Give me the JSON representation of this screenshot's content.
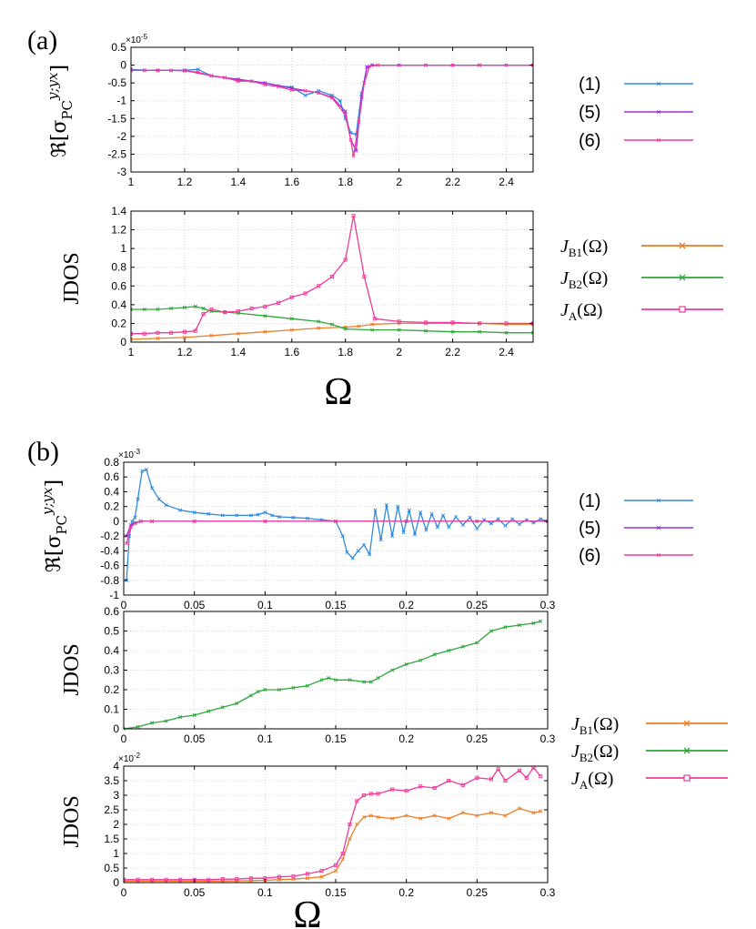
{
  "panels": {
    "a": "(a)",
    "b": "(b)"
  },
  "colors": {
    "s1": "#2f8be0",
    "s5": "#9b30d9",
    "s6": "#f0399a",
    "JB1": "#f07d24",
    "JB2": "#2ea63a",
    "JA": "#f0399a"
  },
  "legend_sigma": [
    {
      "label": "(1)",
      "color": "#2f8be0"
    },
    {
      "label": "(5)",
      "color": "#9b30d9"
    },
    {
      "label": "(6)",
      "color": "#f0399a"
    }
  ],
  "legend_jdos": [
    {
      "main": "J",
      "sub": "B1",
      "tail": "(Ω)",
      "color": "#f07d24",
      "marker": "x"
    },
    {
      "main": "J",
      "sub": "B2",
      "tail": "(Ω)",
      "color": "#2ea63a",
      "marker": "x"
    },
    {
      "main": "J",
      "sub": "A",
      "tail": "(Ω)",
      "color": "#f0399a",
      "marker": "square"
    }
  ],
  "ylabels": {
    "sigma_prefix": "ℜ[σ",
    "sigma_sub": "PC",
    "sigma_sup": "y;yx",
    "sigma_suffix": "]",
    "jdos": "JDOS"
  },
  "xlabel": "Ω",
  "chart_data": [
    {
      "id": "a_top",
      "type": "line",
      "title": "",
      "multiplier": "×10",
      "multiplier_exp": "-5",
      "xlim": [
        1,
        2.5
      ],
      "ylim": [
        -3,
        0.5
      ],
      "xticks": [
        1,
        1.2,
        1.4,
        1.6,
        1.8,
        2,
        2.2,
        2.4
      ],
      "yticks": [
        0.5,
        0,
        -0.5,
        -1,
        -1.5,
        -2,
        -2.5,
        -3
      ],
      "xticklabels": [
        "1",
        "1.2",
        "1.4",
        "1.6",
        "1.8",
        "2",
        "2.2",
        "2.4"
      ],
      "yticklabels": [
        "0.5",
        "0",
        "-0.5",
        "-1",
        "-1.5",
        "-2",
        "-2.5",
        "-3"
      ],
      "series": [
        {
          "name": "(1)",
          "color": "#2f8be0",
          "marker": "x",
          "x": [
            1.0,
            1.05,
            1.1,
            1.15,
            1.2,
            1.25,
            1.3,
            1.35,
            1.4,
            1.45,
            1.5,
            1.55,
            1.6,
            1.65,
            1.7,
            1.75,
            1.78,
            1.8,
            1.82,
            1.84,
            1.86,
            1.88,
            1.9,
            2.0,
            2.1,
            2.2,
            2.3,
            2.4,
            2.5
          ],
          "y": [
            -0.12,
            -0.14,
            -0.14,
            -0.15,
            -0.14,
            -0.12,
            -0.3,
            -0.35,
            -0.42,
            -0.45,
            -0.5,
            -0.58,
            -0.62,
            -0.85,
            -0.72,
            -0.85,
            -1.0,
            -1.5,
            -1.9,
            -1.95,
            -0.8,
            -0.05,
            0.0,
            0.0,
            0.0,
            0.0,
            0.0,
            0.0,
            0.0
          ]
        },
        {
          "name": "(5)",
          "color": "#9b30d9",
          "marker": "x",
          "x": [
            1.0,
            1.1,
            1.2,
            1.3,
            1.4,
            1.5,
            1.6,
            1.7,
            1.75,
            1.8,
            1.82,
            1.84,
            1.86,
            1.88,
            1.9,
            2.0,
            2.2,
            2.5
          ],
          "y": [
            -0.15,
            -0.15,
            -0.15,
            -0.3,
            -0.4,
            -0.5,
            -0.65,
            -0.78,
            -0.9,
            -1.3,
            -2.1,
            -2.4,
            -0.9,
            -0.05,
            0.0,
            0.0,
            0.0,
            0.0
          ]
        },
        {
          "name": "(6)",
          "color": "#f0399a",
          "marker": "x",
          "x": [
            1.0,
            1.05,
            1.1,
            1.15,
            1.2,
            1.25,
            1.3,
            1.35,
            1.4,
            1.45,
            1.5,
            1.55,
            1.6,
            1.65,
            1.7,
            1.75,
            1.8,
            1.82,
            1.83,
            1.85,
            1.87,
            1.89,
            1.92,
            2.0,
            2.1,
            2.2,
            2.3,
            2.4,
            2.5
          ],
          "y": [
            -0.15,
            -0.15,
            -0.15,
            -0.15,
            -0.16,
            -0.2,
            -0.3,
            -0.35,
            -0.45,
            -0.45,
            -0.55,
            -0.6,
            -0.7,
            -0.72,
            -0.78,
            -0.92,
            -1.4,
            -2.1,
            -2.55,
            -1.6,
            -0.5,
            -0.03,
            0.0,
            0.0,
            0.0,
            0.0,
            0.0,
            0.0,
            0.0
          ]
        }
      ]
    },
    {
      "id": "a_bottom",
      "type": "line",
      "title": "",
      "xlim": [
        1,
        2.5
      ],
      "ylim": [
        0,
        1.4
      ],
      "xticks": [
        1,
        1.2,
        1.4,
        1.6,
        1.8,
        2,
        2.2,
        2.4
      ],
      "yticks": [
        0,
        0.2,
        0.4,
        0.6,
        0.8,
        1,
        1.2,
        1.4
      ],
      "xticklabels": [
        "1",
        "1.2",
        "1.4",
        "1.6",
        "1.8",
        "2",
        "2.2",
        "2.4"
      ],
      "yticklabels": [
        "0",
        "0.2",
        "0.4",
        "0.6",
        "0.8",
        "1",
        "1.2",
        "1.4"
      ],
      "series": [
        {
          "name": "JB1",
          "color": "#f07d24",
          "marker": "x",
          "x": [
            1.0,
            1.1,
            1.2,
            1.3,
            1.4,
            1.5,
            1.6,
            1.7,
            1.8,
            1.85,
            1.9,
            2.0,
            2.1,
            2.2,
            2.3,
            2.4,
            2.5
          ],
          "y": [
            0.03,
            0.04,
            0.05,
            0.07,
            0.09,
            0.11,
            0.13,
            0.15,
            0.16,
            0.17,
            0.19,
            0.2,
            0.2,
            0.2,
            0.2,
            0.19,
            0.19
          ]
        },
        {
          "name": "JB2",
          "color": "#2ea63a",
          "marker": "x",
          "x": [
            1.0,
            1.05,
            1.1,
            1.15,
            1.2,
            1.24,
            1.27,
            1.3,
            1.35,
            1.4,
            1.5,
            1.6,
            1.7,
            1.75,
            1.8,
            1.9,
            2.0,
            2.1,
            2.2,
            2.3,
            2.4,
            2.5
          ],
          "y": [
            0.35,
            0.35,
            0.35,
            0.36,
            0.37,
            0.38,
            0.36,
            0.33,
            0.32,
            0.31,
            0.28,
            0.25,
            0.22,
            0.19,
            0.14,
            0.13,
            0.13,
            0.12,
            0.11,
            0.11,
            0.1,
            0.1
          ]
        },
        {
          "name": "JA",
          "color": "#f0399a",
          "marker": "square",
          "x": [
            1.0,
            1.05,
            1.1,
            1.15,
            1.2,
            1.24,
            1.27,
            1.3,
            1.35,
            1.4,
            1.45,
            1.5,
            1.55,
            1.6,
            1.65,
            1.7,
            1.75,
            1.8,
            1.83,
            1.87,
            1.91,
            2.0,
            2.1,
            2.2,
            2.3,
            2.4,
            2.5
          ],
          "y": [
            0.09,
            0.09,
            0.1,
            0.1,
            0.11,
            0.12,
            0.3,
            0.35,
            0.32,
            0.33,
            0.36,
            0.38,
            0.42,
            0.48,
            0.52,
            0.6,
            0.7,
            0.88,
            1.35,
            0.7,
            0.25,
            0.22,
            0.21,
            0.21,
            0.2,
            0.2,
            0.2
          ]
        }
      ]
    },
    {
      "id": "b_top",
      "type": "line",
      "title": "",
      "multiplier": "×10",
      "multiplier_exp": "-3",
      "xlim": [
        0,
        0.3
      ],
      "ylim": [
        -1,
        0.8
      ],
      "xticks": [
        0,
        0.05,
        0.1,
        0.15,
        0.2,
        0.25,
        0.3
      ],
      "yticks": [
        0.8,
        0.6,
        0.4,
        0.2,
        0,
        -0.2,
        -0.4,
        -0.6,
        -0.8,
        -1
      ],
      "xticklabels": [
        "0",
        "0.05",
        "0.1",
        "0.15",
        "0.2",
        "0.25",
        "0.3"
      ],
      "yticklabels": [
        "0.8",
        "0.6",
        "0.4",
        "0.2",
        "0",
        "-0.2",
        "-0.4",
        "-0.6",
        "-0.8",
        "-1"
      ],
      "series": [
        {
          "name": "(1)",
          "color": "#2f8be0",
          "marker": "x",
          "x": [
            0.002,
            0.004,
            0.006,
            0.008,
            0.01,
            0.013,
            0.016,
            0.02,
            0.025,
            0.03,
            0.04,
            0.05,
            0.06,
            0.07,
            0.08,
            0.09,
            0.095,
            0.1,
            0.105,
            0.11,
            0.12,
            0.13,
            0.14,
            0.15,
            0.155,
            0.158,
            0.162,
            0.166,
            0.17,
            0.174,
            0.178,
            0.182,
            0.186,
            0.19,
            0.194,
            0.198,
            0.202,
            0.206,
            0.21,
            0.214,
            0.218,
            0.222,
            0.226,
            0.23,
            0.235,
            0.24,
            0.245,
            0.25,
            0.255,
            0.26,
            0.265,
            0.27,
            0.275,
            0.28,
            0.285,
            0.29,
            0.295,
            0.3
          ],
          "y": [
            -0.8,
            -0.2,
            0.0,
            0.05,
            0.3,
            0.68,
            0.7,
            0.45,
            0.3,
            0.22,
            0.15,
            0.12,
            0.1,
            0.08,
            0.08,
            0.08,
            0.09,
            0.12,
            0.08,
            0.06,
            0.05,
            0.04,
            0.02,
            0.0,
            -0.2,
            -0.42,
            -0.5,
            -0.4,
            -0.32,
            -0.45,
            0.15,
            -0.25,
            0.22,
            -0.2,
            0.2,
            -0.15,
            0.15,
            -0.18,
            0.12,
            -0.12,
            0.1,
            -0.08,
            0.08,
            -0.08,
            0.06,
            -0.05,
            0.05,
            -0.1,
            0.02,
            -0.03,
            0.03,
            -0.06,
            0.03,
            -0.04,
            0.02,
            -0.02,
            0.03,
            0.0
          ]
        },
        {
          "name": "(5)",
          "color": "#9b30d9",
          "marker": "x",
          "x": [
            0.002,
            0.005,
            0.008,
            0.012,
            0.02,
            0.05,
            0.1,
            0.15,
            0.2,
            0.25,
            0.3
          ],
          "y": [
            -0.2,
            -0.05,
            -0.02,
            0.0,
            0.0,
            0.0,
            0.0,
            0.0,
            0.0,
            0.0,
            0.0
          ]
        },
        {
          "name": "(6)",
          "color": "#f0399a",
          "marker": "x",
          "x": [
            0.002,
            0.005,
            0.008,
            0.012,
            0.02,
            0.05,
            0.1,
            0.15,
            0.2,
            0.25,
            0.3
          ],
          "y": [
            -0.3,
            -0.08,
            -0.03,
            0.0,
            0.0,
            0.0,
            0.0,
            0.0,
            0.0,
            0.0,
            0.0
          ]
        }
      ]
    },
    {
      "id": "b_mid",
      "type": "line",
      "title": "",
      "xlim": [
        0,
        0.3
      ],
      "ylim": [
        0,
        0.6
      ],
      "xticks": [
        0,
        0.05,
        0.1,
        0.15,
        0.2,
        0.25,
        0.3
      ],
      "yticks": [
        0,
        0.1,
        0.2,
        0.3,
        0.4,
        0.5,
        0.6
      ],
      "xticklabels": [
        "0",
        "0.05",
        "0.1",
        "0.15",
        "0.2",
        "0.25",
        "0.3"
      ],
      "yticklabels": [
        "0",
        "0.1",
        "0.2",
        "0.3",
        "0.4",
        "0.5",
        "0.6"
      ],
      "series": [
        {
          "name": "JB2",
          "color": "#2ea63a",
          "marker": "x",
          "x": [
            0.0,
            0.01,
            0.02,
            0.03,
            0.04,
            0.05,
            0.06,
            0.07,
            0.08,
            0.09,
            0.095,
            0.1,
            0.11,
            0.12,
            0.13,
            0.14,
            0.145,
            0.15,
            0.16,
            0.17,
            0.175,
            0.18,
            0.19,
            0.2,
            0.21,
            0.22,
            0.23,
            0.24,
            0.25,
            0.26,
            0.27,
            0.28,
            0.29,
            0.295
          ],
          "y": [
            0.0,
            0.01,
            0.03,
            0.04,
            0.06,
            0.07,
            0.09,
            0.11,
            0.13,
            0.17,
            0.19,
            0.2,
            0.2,
            0.21,
            0.22,
            0.25,
            0.26,
            0.25,
            0.25,
            0.24,
            0.24,
            0.26,
            0.3,
            0.33,
            0.35,
            0.38,
            0.4,
            0.42,
            0.44,
            0.5,
            0.52,
            0.53,
            0.54,
            0.55
          ]
        }
      ]
    },
    {
      "id": "b_bottom",
      "type": "line",
      "title": "",
      "multiplier": "×10",
      "multiplier_exp": "-2",
      "xlim": [
        0,
        0.3
      ],
      "ylim": [
        0,
        4
      ],
      "xticks": [
        0,
        0.05,
        0.1,
        0.15,
        0.2,
        0.25,
        0.3
      ],
      "yticks": [
        0,
        0.5,
        1,
        1.5,
        2,
        2.5,
        3,
        3.5,
        4
      ],
      "xticklabels": [
        "0",
        "0.05",
        "0.1",
        "0.15",
        "0.2",
        "0.25",
        "0.3"
      ],
      "yticklabels": [
        "0",
        "0.5",
        "1",
        "1.5",
        "2",
        "2.5",
        "3",
        "3.5",
        "4"
      ],
      "series": [
        {
          "name": "JB1",
          "color": "#f07d24",
          "marker": "x",
          "x": [
            0.0,
            0.01,
            0.02,
            0.03,
            0.04,
            0.05,
            0.06,
            0.07,
            0.08,
            0.09,
            0.1,
            0.11,
            0.12,
            0.13,
            0.14,
            0.15,
            0.155,
            0.16,
            0.165,
            0.17,
            0.175,
            0.18,
            0.19,
            0.2,
            0.21,
            0.22,
            0.23,
            0.24,
            0.25,
            0.26,
            0.27,
            0.28,
            0.29,
            0.295
          ],
          "y": [
            0.05,
            0.05,
            0.05,
            0.05,
            0.05,
            0.05,
            0.05,
            0.05,
            0.06,
            0.07,
            0.08,
            0.1,
            0.12,
            0.15,
            0.2,
            0.4,
            0.8,
            1.5,
            2.0,
            2.25,
            2.3,
            2.25,
            2.2,
            2.3,
            2.2,
            2.3,
            2.2,
            2.4,
            2.3,
            2.4,
            2.3,
            2.55,
            2.4,
            2.45
          ]
        },
        {
          "name": "JA",
          "color": "#f0399a",
          "marker": "square",
          "x": [
            0.0,
            0.01,
            0.02,
            0.03,
            0.04,
            0.05,
            0.06,
            0.07,
            0.08,
            0.09,
            0.1,
            0.11,
            0.12,
            0.13,
            0.14,
            0.15,
            0.155,
            0.16,
            0.165,
            0.17,
            0.175,
            0.18,
            0.19,
            0.2,
            0.21,
            0.22,
            0.23,
            0.24,
            0.25,
            0.26,
            0.265,
            0.27,
            0.28,
            0.285,
            0.29,
            0.295
          ],
          "y": [
            0.1,
            0.1,
            0.1,
            0.1,
            0.1,
            0.1,
            0.1,
            0.12,
            0.12,
            0.15,
            0.15,
            0.2,
            0.22,
            0.3,
            0.4,
            0.6,
            1.0,
            2.0,
            2.8,
            3.0,
            3.05,
            3.05,
            3.2,
            3.15,
            3.3,
            3.25,
            3.5,
            3.35,
            3.6,
            3.55,
            3.9,
            3.5,
            3.85,
            3.6,
            3.95,
            3.65
          ]
        }
      ]
    }
  ]
}
